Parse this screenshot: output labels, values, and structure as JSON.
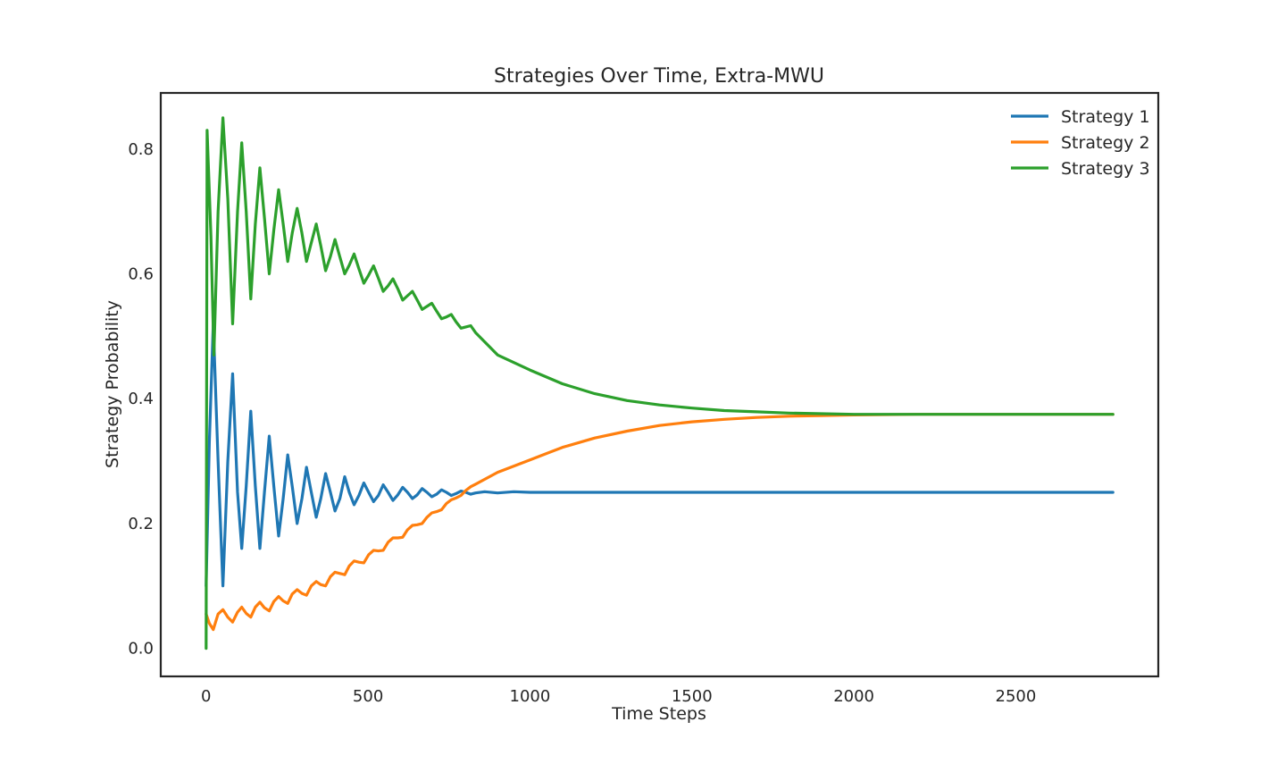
{
  "chart_data": {
    "type": "line",
    "title": "Strategies Over Time, Extra-MWU",
    "xlabel": "Time Steps",
    "ylabel": "Strategy Probability",
    "xlim": [
      -140,
      2940
    ],
    "ylim": [
      -0.045,
      0.89
    ],
    "xticks": [
      0,
      500,
      1000,
      1500,
      2000,
      2500
    ],
    "xtick_labels": [
      "0",
      "500",
      "1000",
      "1500",
      "2000",
      "2500"
    ],
    "yticks": [
      0.0,
      0.2,
      0.4,
      0.6,
      0.8
    ],
    "ytick_labels": [
      "0.0",
      "0.2",
      "0.4",
      "0.6",
      "0.8"
    ],
    "grid": false,
    "legend_position": "top-right",
    "x_range": [
      0,
      2800
    ],
    "series": [
      {
        "name": "Strategy 1",
        "color": "#1f77b4",
        "x": [
          0,
          10,
          22,
          37,
          52,
          67,
          82,
          97,
          110,
          124,
          138,
          152,
          166,
          180,
          195,
          209,
          224,
          238,
          252,
          266,
          281,
          296,
          310,
          325,
          340,
          354,
          369,
          384,
          398,
          413,
          428,
          442,
          457,
          472,
          487,
          502,
          517,
          532,
          547,
          562,
          577,
          592,
          607,
          622,
          637,
          652,
          667,
          682,
          697,
          712,
          727,
          742,
          757,
          772,
          787,
          802,
          817,
          832,
          860,
          900,
          950,
          1000,
          1200,
          1600,
          2000,
          2400,
          2800
        ],
        "y": [
          0.1,
          0.33,
          0.52,
          0.3,
          0.1,
          0.3,
          0.44,
          0.25,
          0.16,
          0.26,
          0.38,
          0.26,
          0.16,
          0.25,
          0.34,
          0.26,
          0.18,
          0.24,
          0.31,
          0.26,
          0.2,
          0.24,
          0.29,
          0.25,
          0.21,
          0.24,
          0.28,
          0.25,
          0.22,
          0.24,
          0.275,
          0.25,
          0.23,
          0.245,
          0.265,
          0.25,
          0.235,
          0.245,
          0.262,
          0.25,
          0.237,
          0.246,
          0.258,
          0.25,
          0.24,
          0.246,
          0.256,
          0.25,
          0.243,
          0.247,
          0.254,
          0.25,
          0.245,
          0.248,
          0.252,
          0.25,
          0.247,
          0.249,
          0.251,
          0.249,
          0.251,
          0.25,
          0.25,
          0.25,
          0.25,
          0.25,
          0.25
        ]
      },
      {
        "name": "Strategy 2",
        "color": "#ff7f0e",
        "x": [
          0,
          10,
          22,
          37,
          52,
          67,
          82,
          97,
          110,
          124,
          138,
          152,
          166,
          180,
          195,
          209,
          224,
          238,
          252,
          266,
          281,
          296,
          310,
          325,
          340,
          354,
          369,
          384,
          398,
          413,
          428,
          442,
          457,
          472,
          487,
          502,
          517,
          532,
          547,
          562,
          577,
          592,
          607,
          622,
          637,
          652,
          667,
          682,
          697,
          712,
          727,
          742,
          757,
          772,
          787,
          802,
          817,
          832,
          900,
          1000,
          1100,
          1200,
          1300,
          1400,
          1500,
          1600,
          1700,
          1800,
          1900,
          2000,
          2200,
          2400,
          2600,
          2800
        ],
        "y": [
          0.055,
          0.04,
          0.03,
          0.055,
          0.062,
          0.05,
          0.042,
          0.058,
          0.066,
          0.056,
          0.05,
          0.066,
          0.074,
          0.065,
          0.06,
          0.075,
          0.083,
          0.076,
          0.072,
          0.087,
          0.094,
          0.088,
          0.085,
          0.1,
          0.107,
          0.102,
          0.1,
          0.115,
          0.122,
          0.12,
          0.118,
          0.132,
          0.14,
          0.138,
          0.137,
          0.15,
          0.157,
          0.156,
          0.157,
          0.17,
          0.177,
          0.177,
          0.178,
          0.19,
          0.197,
          0.198,
          0.2,
          0.21,
          0.217,
          0.219,
          0.222,
          0.232,
          0.238,
          0.241,
          0.245,
          0.253,
          0.259,
          0.263,
          0.282,
          0.302,
          0.322,
          0.337,
          0.348,
          0.357,
          0.363,
          0.367,
          0.37,
          0.372,
          0.373,
          0.374,
          0.375,
          0.375,
          0.375,
          0.375
        ]
      },
      {
        "name": "Strategy 3",
        "color": "#2ca02c",
        "x": [
          0,
          3,
          15,
          24,
          37,
          52,
          67,
          82,
          97,
          110,
          124,
          138,
          152,
          166,
          180,
          195,
          209,
          224,
          238,
          252,
          266,
          281,
          296,
          310,
          325,
          340,
          354,
          369,
          384,
          398,
          413,
          428,
          442,
          457,
          472,
          487,
          502,
          517,
          532,
          547,
          562,
          577,
          592,
          607,
          622,
          637,
          652,
          667,
          682,
          697,
          712,
          727,
          742,
          757,
          772,
          787,
          802,
          817,
          832,
          900,
          1000,
          1100,
          1200,
          1300,
          1400,
          1500,
          1600,
          1700,
          1800,
          1900,
          2000,
          2200,
          2400,
          2600,
          2800
        ],
        "y": [
          0.0,
          0.83,
          0.66,
          0.47,
          0.7,
          0.85,
          0.72,
          0.52,
          0.7,
          0.81,
          0.7,
          0.56,
          0.68,
          0.77,
          0.69,
          0.6,
          0.67,
          0.735,
          0.68,
          0.62,
          0.665,
          0.705,
          0.665,
          0.62,
          0.65,
          0.68,
          0.645,
          0.605,
          0.628,
          0.655,
          0.627,
          0.6,
          0.614,
          0.632,
          0.608,
          0.585,
          0.598,
          0.613,
          0.593,
          0.572,
          0.581,
          0.592,
          0.576,
          0.558,
          0.565,
          0.572,
          0.558,
          0.543,
          0.548,
          0.553,
          0.54,
          0.528,
          0.531,
          0.535,
          0.523,
          0.513,
          0.515,
          0.517,
          0.506,
          0.47,
          0.446,
          0.424,
          0.408,
          0.397,
          0.39,
          0.385,
          0.381,
          0.379,
          0.377,
          0.376,
          0.375,
          0.375,
          0.375,
          0.375,
          0.375
        ]
      }
    ]
  }
}
